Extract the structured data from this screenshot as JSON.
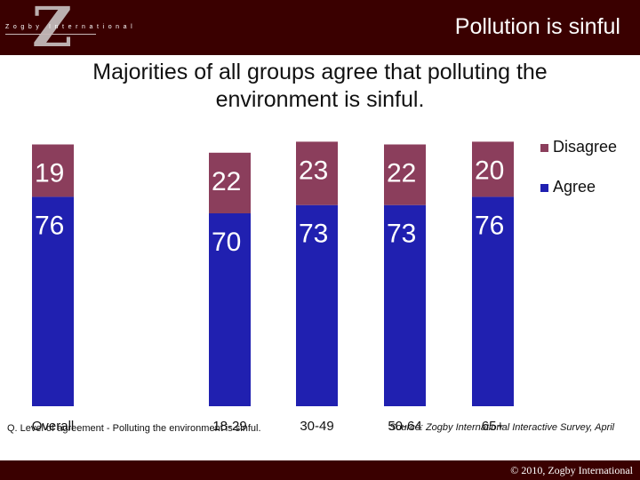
{
  "header": {
    "title": "Pollution is sinful",
    "logo_letter": "Z",
    "logo_word": "Zogby International"
  },
  "subtitle": "Majorities of all groups agree that polluting the environment is sinful.",
  "footnote": "Q. Level of agreement  - Polluting the environment is sinful.",
  "source": "Source: Zogby International Interactive Survey, April",
  "copyright": "© 2010, Zogby International",
  "colors": {
    "header_bg": "#3a0000",
    "agree": "#2020b0",
    "disagree": "#8b3e5c"
  },
  "chart_data": {
    "type": "bar",
    "stacked": true,
    "categories": [
      "Overall",
      "18-29",
      "30-49",
      "50-64",
      "65+"
    ],
    "series": [
      {
        "name": "Agree",
        "values": [
          76,
          70,
          73,
          73,
          76
        ],
        "color": "#2020b0"
      },
      {
        "name": "Disagree",
        "values": [
          19,
          22,
          23,
          22,
          20
        ],
        "color": "#8b3e5c"
      }
    ],
    "legend_order": [
      "Disagree",
      "Agree"
    ],
    "legend_position": "top-right",
    "ylim": [
      0,
      100
    ],
    "grid": false,
    "data_labels": true
  }
}
